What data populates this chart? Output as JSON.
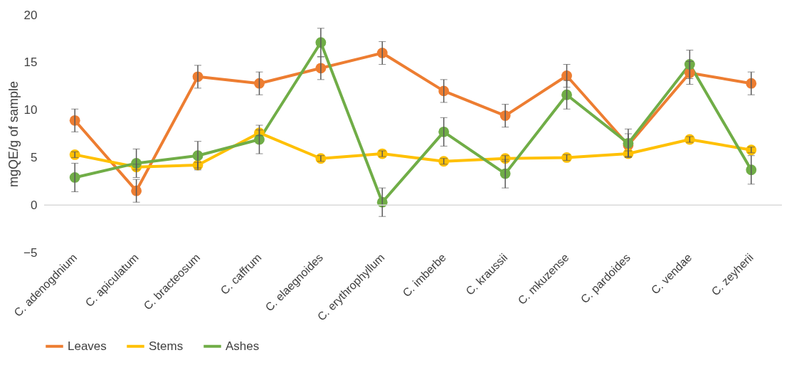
{
  "chart_data": {
    "type": "line",
    "ylabel": "mgQE/g of sample",
    "categories": [
      "C. adenogdnium",
      "C. apiculatum",
      "C. bracteosum",
      "C. caffrum",
      "C. elaegnoides",
      "C. erythrophyllum",
      "C. imberbe",
      "C. kraussii",
      "C. mkuzense",
      "C. pardoides",
      "C. vendae",
      "C. zeyherii"
    ],
    "series": [
      {
        "name": "Leaves",
        "color": "#ed7d31",
        "values": [
          8.9,
          1.5,
          13.5,
          12.8,
          14.4,
          16.0,
          12.0,
          9.4,
          13.6,
          6.3,
          13.9,
          12.8
        ],
        "errors": [
          1.2,
          1.2,
          1.2,
          1.2,
          1.2,
          1.2,
          1.2,
          1.2,
          1.2,
          1.2,
          1.2,
          1.2
        ]
      },
      {
        "name": "Stems",
        "color": "#ffc000",
        "values": [
          5.3,
          4.0,
          4.2,
          7.6,
          4.9,
          5.4,
          4.6,
          4.9,
          5.0,
          5.4,
          6.9,
          5.8
        ],
        "errors": [
          0.3,
          0.3,
          0.3,
          0.3,
          0.3,
          0.3,
          0.3,
          0.3,
          0.3,
          0.3,
          0.3,
          0.3
        ]
      },
      {
        "name": "Ashes",
        "color": "#70ad47",
        "values": [
          2.9,
          4.4,
          5.2,
          6.9,
          17.1,
          0.3,
          7.7,
          3.3,
          11.6,
          6.5,
          14.8,
          3.7
        ],
        "errors": [
          1.5,
          1.5,
          1.5,
          1.5,
          1.5,
          1.5,
          1.5,
          1.5,
          1.5,
          1.5,
          1.5,
          1.5
        ]
      }
    ],
    "ylim": [
      -5,
      20
    ],
    "yticks": [
      -5,
      0,
      5,
      10,
      15,
      20
    ],
    "ref_lines": [
      {
        "axis": "y",
        "value": 0,
        "color": "#d9d9d9"
      }
    ],
    "grid": false,
    "legend": "bottom",
    "marker": "circle",
    "line_style": "solid"
  }
}
